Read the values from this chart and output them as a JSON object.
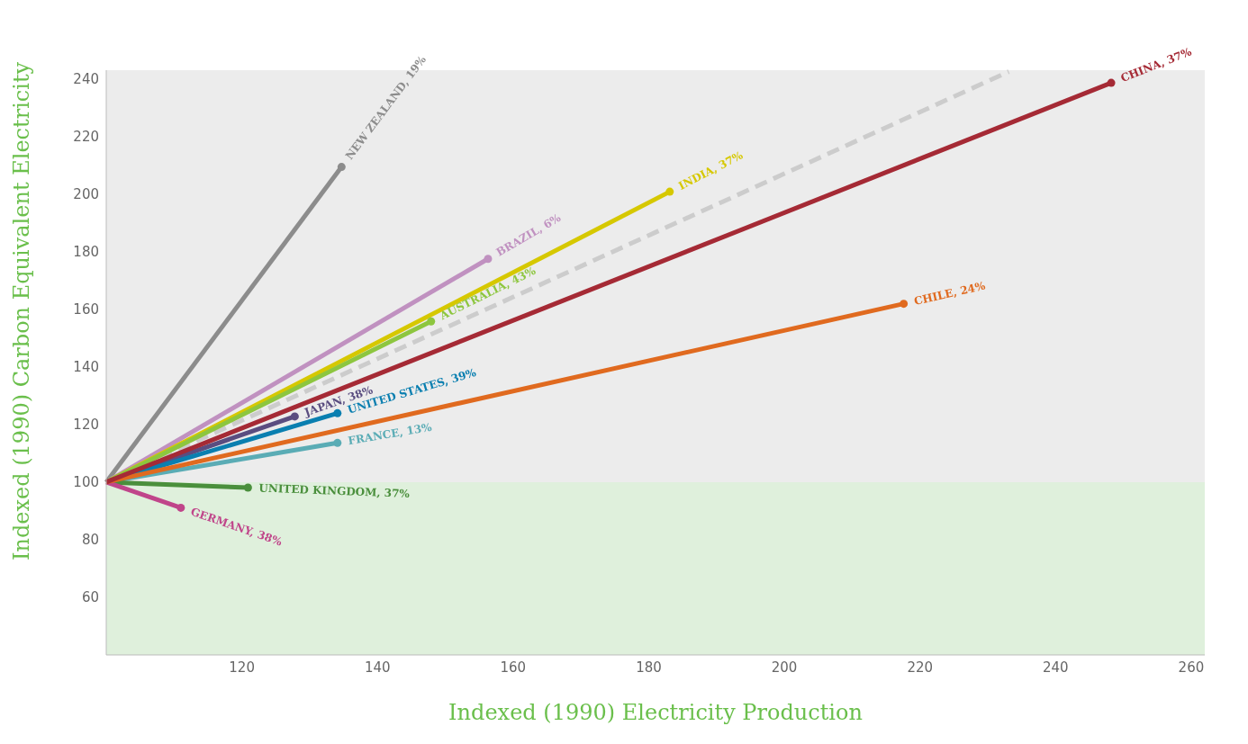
{
  "chart_data": {
    "type": "line",
    "xlabel": "Indexed (1990) Electricity Production",
    "ylabel": "Indexed (1990) Carbon Equivalent Electricity",
    "xlim": [
      100,
      262
    ],
    "xticks": [
      120,
      140,
      160,
      180,
      200,
      220,
      240,
      260
    ],
    "ylim": [
      40,
      243
    ],
    "yticks": [
      60,
      80,
      100,
      120,
      140,
      160,
      180,
      200,
      220,
      240
    ],
    "grid": false,
    "legend": false,
    "marker": "circle",
    "line_style": "solid",
    "bands": [
      {
        "axis": "y",
        "from": 100,
        "to": 243,
        "color": "#ececec"
      },
      {
        "axis": "y",
        "from": 40,
        "to": 100,
        "color": "#dff0dc"
      }
    ],
    "series": [
      {
        "x": [
          100,
          233.1
        ],
        "values": [
          100,
          242.5
        ],
        "color": "#cccccc",
        "line_style": "dashed",
        "marker": "none"
      },
      {
        "name": "NEW ZEALAND, 19%",
        "x": [
          100,
          134.7
        ],
        "values": [
          100,
          209.4
        ],
        "color": "#8c8c8c"
      },
      {
        "name": "BRAZIL, 6%",
        "x": [
          100,
          156.3
        ],
        "values": [
          100,
          177.5
        ],
        "color": "#c091c0"
      },
      {
        "name": "INDIA, 37%",
        "x": [
          100,
          183.1
        ],
        "values": [
          100,
          200.8
        ],
        "color": "#d6c800"
      },
      {
        "name": "AUSTRALIA, 43%",
        "x": [
          100,
          147.9
        ],
        "values": [
          100,
          155.8
        ],
        "color": "#8dc63f"
      },
      {
        "name": "JAPAN, 38%",
        "x": [
          100,
          127.8
        ],
        "values": [
          100,
          122.8
        ],
        "color": "#5a4d80"
      },
      {
        "name": "UNITED STATES, 39%",
        "x": [
          100,
          134.1
        ],
        "values": [
          100,
          123.9
        ],
        "color": "#0a7fb0"
      },
      {
        "name": "FRANCE, 13%",
        "x": [
          100,
          134.1
        ],
        "values": [
          100,
          113.6
        ],
        "color": "#5aacb5"
      },
      {
        "name": "UNITED KINGDOM, 37%",
        "x": [
          100,
          120.9
        ],
        "values": [
          100,
          98.1
        ],
        "color": "#4a8f3c"
      },
      {
        "name": "GERMANY, 38%",
        "x": [
          100,
          111
        ],
        "values": [
          100,
          91.1
        ],
        "color": "#c0458a"
      },
      {
        "name": "CHILE, 24%",
        "x": [
          100,
          217.6
        ],
        "values": [
          100,
          161.9
        ],
        "color": "#e06a1f"
      },
      {
        "name": "CHINA, 37%",
        "x": [
          100,
          248.2
        ],
        "values": [
          100,
          238.6
        ],
        "color": "#a52a35"
      }
    ]
  }
}
